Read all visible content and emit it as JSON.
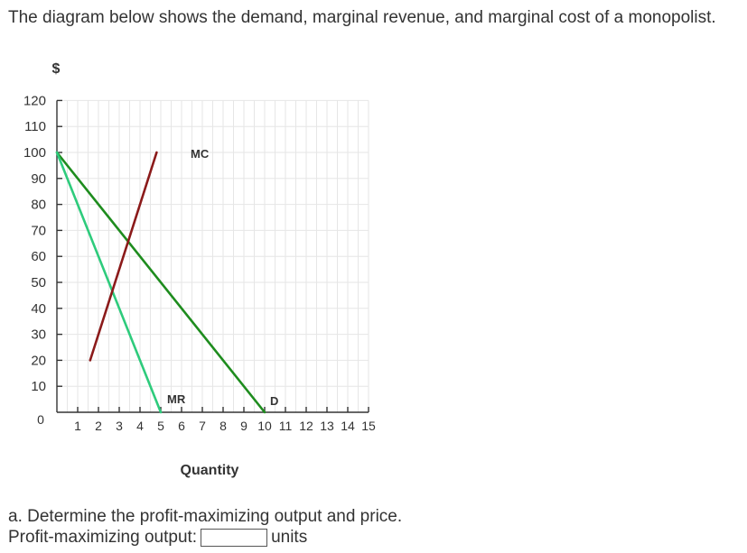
{
  "question": {
    "text": "The diagram below shows the demand, marginal revenue, and marginal cost of a monopolist."
  },
  "chart_data": {
    "type": "line",
    "ylabel": "$",
    "xlabel": "Quantity",
    "xlim": [
      0,
      15
    ],
    "ylim": [
      0,
      120
    ],
    "x_ticks": [
      "1",
      "2",
      "3",
      "4",
      "5",
      "6",
      "7",
      "8",
      "9",
      "10",
      "11",
      "12",
      "13",
      "14",
      "15"
    ],
    "y_ticks": [
      "120",
      "110",
      "100",
      "90",
      "80",
      "70",
      "60",
      "50",
      "40",
      "30",
      "20",
      "10"
    ],
    "origin_label": "0",
    "grid": true,
    "series": [
      {
        "name": "D",
        "color": "#1e8c1e",
        "points": [
          [
            0,
            100
          ],
          [
            10,
            0
          ]
        ]
      },
      {
        "name": "MR",
        "color": "#2ecb7c",
        "points": [
          [
            0,
            100
          ],
          [
            5,
            0
          ]
        ]
      },
      {
        "name": "MC",
        "color": "#8b1a1a",
        "points": [
          [
            1.6,
            20
          ],
          [
            4.8,
            100
          ]
        ]
      }
    ]
  },
  "part_a": {
    "text": "a. Determine the profit-maximizing output and price."
  },
  "answer": {
    "label": "Profit-maximizing output:",
    "value": "",
    "units": "units"
  }
}
